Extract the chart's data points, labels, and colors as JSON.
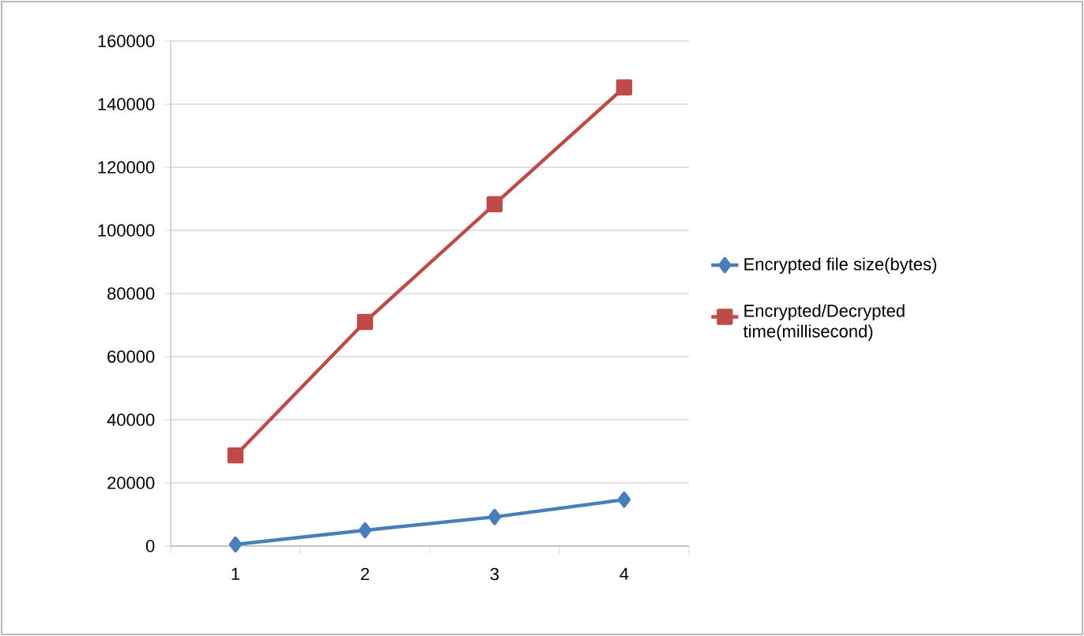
{
  "chart_data": {
    "type": "line",
    "categories": [
      "1",
      "2",
      "3",
      "4"
    ],
    "series": [
      {
        "name": "Encrypted file size(bytes)",
        "color": "#4a7ebb",
        "marker": "diamond",
        "values": [
          500,
          5000,
          9200,
          14700
        ]
      },
      {
        "name": "Encrypted/Decrypted time(millisecond)",
        "color": "#be4b48",
        "marker": "square",
        "values": [
          28700,
          71000,
          108300,
          145300
        ]
      }
    ],
    "ylim": [
      0,
      160000
    ],
    "yticks": [
      0,
      20000,
      40000,
      60000,
      80000,
      100000,
      120000,
      140000,
      160000
    ],
    "grid": "y",
    "legend": "right",
    "line_style": "solid"
  }
}
